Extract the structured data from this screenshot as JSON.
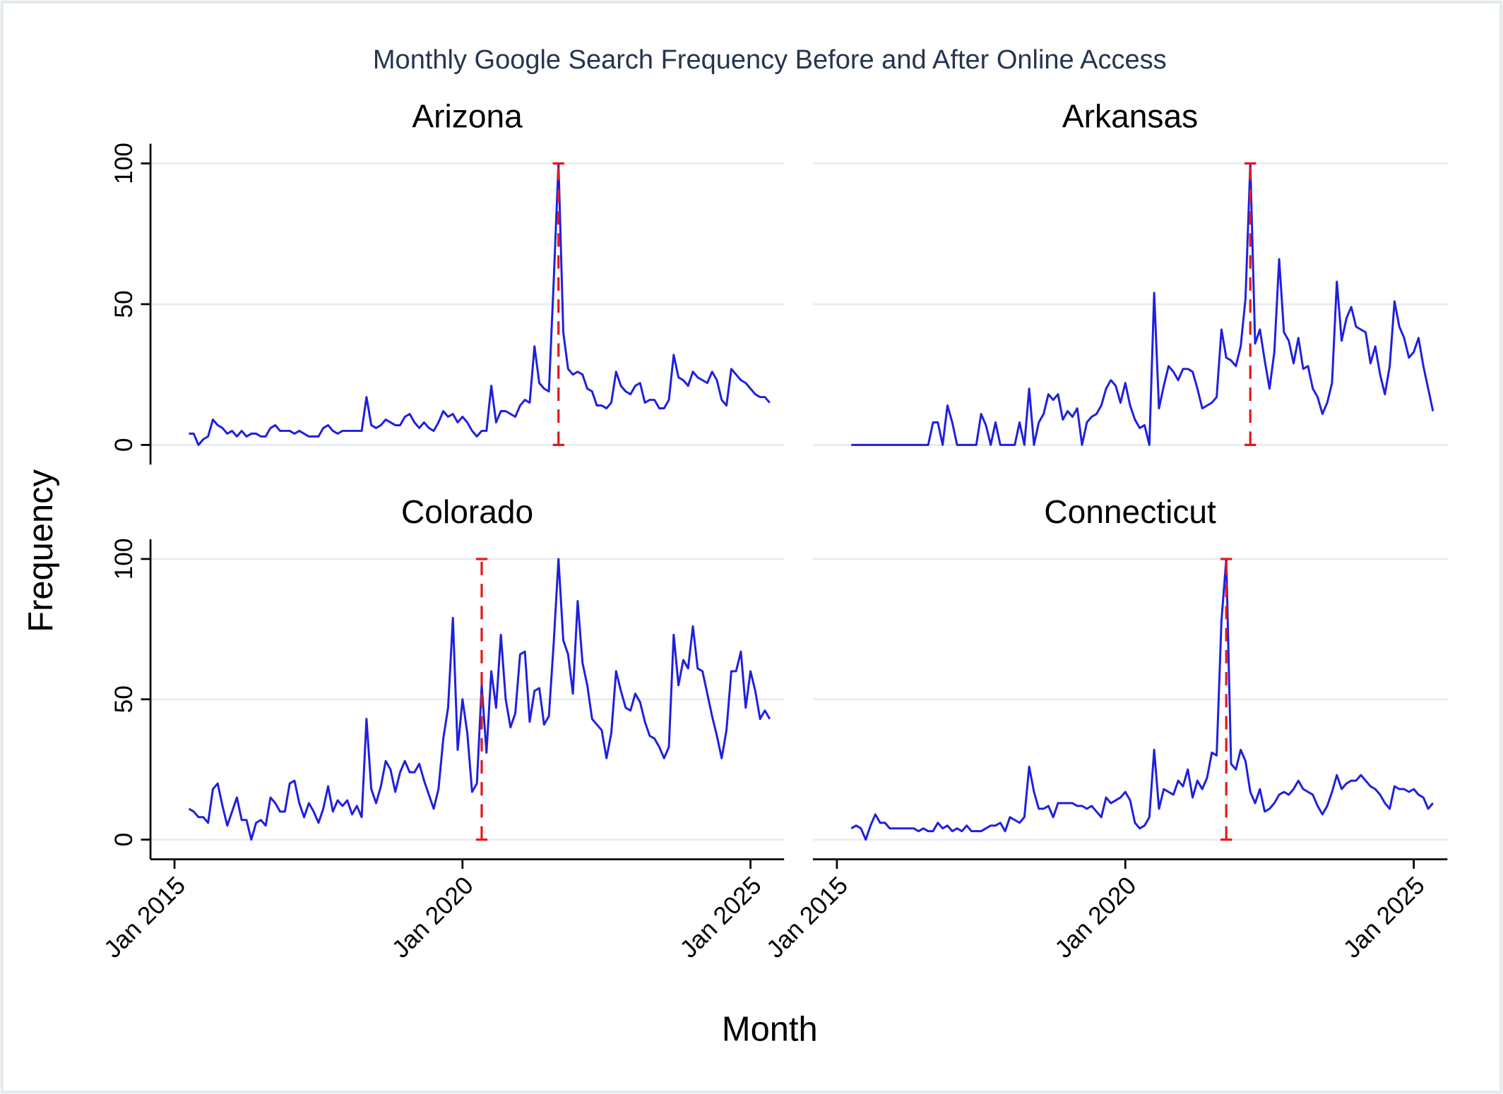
{
  "title": "Monthly Google Search Frequency Before and After Online Access",
  "x_label": "Month",
  "y_label": "Frequency",
  "chart_data": [
    {
      "type": "line",
      "title": "Arizona",
      "color": "#1f1fe0",
      "x": [
        "2015-04",
        "2015-05",
        "2015-06",
        "2015-07",
        "2015-08",
        "2015-09",
        "2015-10",
        "2015-11",
        "2015-12",
        "2016-01",
        "2016-02",
        "2016-03",
        "2016-04",
        "2016-05",
        "2016-06",
        "2016-07",
        "2016-08",
        "2016-09",
        "2016-10",
        "2016-11",
        "2016-12",
        "2017-01",
        "2017-02",
        "2017-03",
        "2017-04",
        "2017-05",
        "2017-06",
        "2017-07",
        "2017-08",
        "2017-09",
        "2017-10",
        "2017-11",
        "2017-12",
        "2018-01",
        "2018-02",
        "2018-03",
        "2018-04",
        "2018-05",
        "2018-06",
        "2018-07",
        "2018-08",
        "2018-09",
        "2018-10",
        "2018-11",
        "2018-12",
        "2019-01",
        "2019-02",
        "2019-03",
        "2019-04",
        "2019-05",
        "2019-06",
        "2019-07",
        "2019-08",
        "2019-09",
        "2019-10",
        "2019-11",
        "2019-12",
        "2020-01",
        "2020-02",
        "2020-03",
        "2020-04",
        "2020-05",
        "2020-06",
        "2020-07",
        "2020-08",
        "2020-09",
        "2020-10",
        "2020-11",
        "2020-12",
        "2021-01",
        "2021-02",
        "2021-03",
        "2021-04",
        "2021-05",
        "2021-06",
        "2021-07",
        "2021-08",
        "2021-09",
        "2021-10",
        "2021-11",
        "2021-12",
        "2022-01",
        "2022-02",
        "2022-03",
        "2022-04",
        "2022-05",
        "2022-06",
        "2022-07",
        "2022-08",
        "2022-09",
        "2022-10",
        "2022-11",
        "2022-12",
        "2023-01",
        "2023-02",
        "2023-03",
        "2023-04",
        "2023-05",
        "2023-06",
        "2023-07",
        "2023-08",
        "2023-09",
        "2023-10",
        "2023-11",
        "2023-12",
        "2024-01",
        "2024-02",
        "2024-03",
        "2024-04",
        "2024-05",
        "2024-06",
        "2024-07",
        "2024-08",
        "2024-09",
        "2024-10",
        "2024-11",
        "2024-12",
        "2025-01",
        "2025-02",
        "2025-03",
        "2025-04",
        "2025-05"
      ],
      "values": [
        4,
        4,
        0,
        2,
        3,
        9,
        7,
        6,
        4,
        5,
        3,
        5,
        3,
        4,
        4,
        3,
        3,
        6,
        7,
        5,
        5,
        5,
        4,
        5,
        4,
        3,
        3,
        3,
        6,
        7,
        5,
        4,
        5,
        5,
        5,
        5,
        5,
        17,
        7,
        6,
        7,
        9,
        8,
        7,
        7,
        10,
        11,
        8,
        6,
        8,
        6,
        5,
        8,
        12,
        10,
        11,
        8,
        10,
        8,
        5,
        3,
        5,
        5,
        21,
        8,
        12,
        12,
        11,
        10,
        14,
        16,
        15,
        35,
        22,
        20,
        19,
        58,
        100,
        40,
        27,
        25,
        26,
        25,
        20,
        19,
        14,
        14,
        13,
        15,
        26,
        21,
        19,
        18,
        21,
        22,
        15,
        16,
        16,
        13,
        13,
        16,
        32,
        24,
        23,
        21,
        26,
        24,
        23,
        22,
        26,
        23,
        16,
        14,
        27,
        25,
        23,
        22,
        20,
        18,
        17,
        17,
        15
      ],
      "vline": {
        "x": "2021-09",
        "y": [
          0,
          100
        ],
        "color": "#e41a1c"
      },
      "xlim": [
        "2014-08",
        "2025-08"
      ],
      "ylim": [
        -7,
        107
      ],
      "yticks": [
        0,
        50,
        100
      ],
      "grid": true,
      "y_axis": true,
      "x_axis": false
    },
    {
      "type": "line",
      "title": "Arkansas",
      "color": "#1f1fe0",
      "x": [
        "2015-04",
        "2015-05",
        "2015-06",
        "2015-07",
        "2015-08",
        "2015-09",
        "2015-10",
        "2015-11",
        "2015-12",
        "2016-01",
        "2016-02",
        "2016-03",
        "2016-04",
        "2016-05",
        "2016-06",
        "2016-07",
        "2016-08",
        "2016-09",
        "2016-10",
        "2016-11",
        "2016-12",
        "2017-01",
        "2017-02",
        "2017-03",
        "2017-04",
        "2017-05",
        "2017-06",
        "2017-07",
        "2017-08",
        "2017-09",
        "2017-10",
        "2017-11",
        "2017-12",
        "2018-01",
        "2018-02",
        "2018-03",
        "2018-04",
        "2018-05",
        "2018-06",
        "2018-07",
        "2018-08",
        "2018-09",
        "2018-10",
        "2018-11",
        "2018-12",
        "2019-01",
        "2019-02",
        "2019-03",
        "2019-04",
        "2019-05",
        "2019-06",
        "2019-07",
        "2019-08",
        "2019-09",
        "2019-10",
        "2019-11",
        "2019-12",
        "2020-01",
        "2020-02",
        "2020-03",
        "2020-04",
        "2020-05",
        "2020-06",
        "2020-07",
        "2020-08",
        "2020-09",
        "2020-10",
        "2020-11",
        "2020-12",
        "2021-01",
        "2021-02",
        "2021-03",
        "2021-04",
        "2021-05",
        "2021-06",
        "2021-07",
        "2021-08",
        "2021-09",
        "2021-10",
        "2021-11",
        "2021-12",
        "2022-01",
        "2022-02",
        "2022-03",
        "2022-04",
        "2022-05",
        "2022-06",
        "2022-07",
        "2022-08",
        "2022-09",
        "2022-10",
        "2022-11",
        "2022-12",
        "2023-01",
        "2023-02",
        "2023-03",
        "2023-04",
        "2023-05",
        "2023-06",
        "2023-07",
        "2023-08",
        "2023-09",
        "2023-10",
        "2023-11",
        "2023-12",
        "2024-01",
        "2024-02",
        "2024-03",
        "2024-04",
        "2024-05",
        "2024-06",
        "2024-07",
        "2024-08",
        "2024-09",
        "2024-10",
        "2024-11",
        "2024-12",
        "2025-01",
        "2025-02",
        "2025-03",
        "2025-04",
        "2025-05"
      ],
      "values": [
        0,
        0,
        0,
        0,
        0,
        0,
        0,
        0,
        0,
        0,
        0,
        0,
        0,
        0,
        0,
        0,
        0,
        8,
        8,
        0,
        14,
        8,
        0,
        0,
        0,
        0,
        0,
        11,
        7,
        0,
        8,
        0,
        0,
        0,
        0,
        8,
        0,
        20,
        0,
        8,
        11,
        18,
        16,
        18,
        9,
        12,
        10,
        13,
        0,
        8,
        10,
        11,
        14,
        20,
        23,
        21,
        15,
        22,
        14,
        9,
        6,
        7,
        0,
        54,
        13,
        21,
        28,
        26,
        23,
        27,
        27,
        26,
        20,
        13,
        14,
        15,
        17,
        41,
        31,
        30,
        28,
        35,
        52,
        100,
        36,
        41,
        30,
        20,
        33,
        66,
        40,
        37,
        29,
        38,
        27,
        28,
        20,
        17,
        11,
        15,
        22,
        58,
        37,
        45,
        49,
        42,
        41,
        40,
        29,
        35,
        25,
        18,
        28,
        51,
        42,
        38,
        31,
        33,
        38,
        28,
        20,
        12
      ],
      "vline": {
        "x": "2022-03",
        "y": [
          0,
          100
        ],
        "color": "#e41a1c"
      },
      "xlim": [
        "2014-08",
        "2025-08"
      ],
      "ylim": [
        -7,
        107
      ],
      "yticks": [
        0,
        50,
        100
      ],
      "grid": true,
      "y_axis": false,
      "x_axis": false
    },
    {
      "type": "line",
      "title": "Colorado",
      "color": "#1f1fe0",
      "x": [
        "2015-04",
        "2015-05",
        "2015-06",
        "2015-07",
        "2015-08",
        "2015-09",
        "2015-10",
        "2015-11",
        "2015-12",
        "2016-01",
        "2016-02",
        "2016-03",
        "2016-04",
        "2016-05",
        "2016-06",
        "2016-07",
        "2016-08",
        "2016-09",
        "2016-10",
        "2016-11",
        "2016-12",
        "2017-01",
        "2017-02",
        "2017-03",
        "2017-04",
        "2017-05",
        "2017-06",
        "2017-07",
        "2017-08",
        "2017-09",
        "2017-10",
        "2017-11",
        "2017-12",
        "2018-01",
        "2018-02",
        "2018-03",
        "2018-04",
        "2018-05",
        "2018-06",
        "2018-07",
        "2018-08",
        "2018-09",
        "2018-10",
        "2018-11",
        "2018-12",
        "2019-01",
        "2019-02",
        "2019-03",
        "2019-04",
        "2019-05",
        "2019-06",
        "2019-07",
        "2019-08",
        "2019-09",
        "2019-10",
        "2019-11",
        "2019-12",
        "2020-01",
        "2020-02",
        "2020-03",
        "2020-04",
        "2020-05",
        "2020-06",
        "2020-07",
        "2020-08",
        "2020-09",
        "2020-10",
        "2020-11",
        "2020-12",
        "2021-01",
        "2021-02",
        "2021-03",
        "2021-04",
        "2021-05",
        "2021-06",
        "2021-07",
        "2021-08",
        "2021-09",
        "2021-10",
        "2021-11",
        "2021-12",
        "2022-01",
        "2022-02",
        "2022-03",
        "2022-04",
        "2022-05",
        "2022-06",
        "2022-07",
        "2022-08",
        "2022-09",
        "2022-10",
        "2022-11",
        "2022-12",
        "2023-01",
        "2023-02",
        "2023-03",
        "2023-04",
        "2023-05",
        "2023-06",
        "2023-07",
        "2023-08",
        "2023-09",
        "2023-10",
        "2023-11",
        "2023-12",
        "2024-01",
        "2024-02",
        "2024-03",
        "2024-04",
        "2024-05",
        "2024-06",
        "2024-07",
        "2024-08",
        "2024-09",
        "2024-10",
        "2024-11",
        "2024-12",
        "2025-01",
        "2025-02",
        "2025-03",
        "2025-04",
        "2025-05"
      ],
      "values": [
        11,
        10,
        8,
        8,
        6,
        18,
        20,
        12,
        5,
        10,
        15,
        7,
        7,
        0,
        6,
        7,
        5,
        15,
        13,
        10,
        10,
        20,
        21,
        13,
        8,
        13,
        10,
        6,
        11,
        19,
        10,
        14,
        12,
        14,
        9,
        12,
        8,
        43,
        18,
        13,
        19,
        28,
        25,
        17,
        24,
        28,
        24,
        24,
        27,
        21,
        16,
        11,
        18,
        36,
        47,
        79,
        32,
        50,
        38,
        17,
        20,
        55,
        31,
        60,
        47,
        73,
        50,
        40,
        45,
        66,
        67,
        42,
        53,
        54,
        41,
        44,
        70,
        100,
        71,
        66,
        52,
        85,
        63,
        55,
        43,
        41,
        39,
        29,
        38,
        60,
        53,
        47,
        46,
        52,
        49,
        42,
        37,
        36,
        33,
        29,
        33,
        73,
        55,
        64,
        61,
        76,
        61,
        60,
        52,
        44,
        37,
        29,
        39,
        60,
        60,
        67,
        47,
        60,
        53,
        43,
        46,
        43
      ],
      "vline": {
        "x": "2020-05",
        "y": [
          0,
          100
        ],
        "color": "#e41a1c"
      },
      "xlim": [
        "2014-08",
        "2025-08"
      ],
      "ylim": [
        -7,
        107
      ],
      "yticks": [
        0,
        50,
        100
      ],
      "xticks": [
        {
          "value": "2015-01",
          "label": "Jan 2015"
        },
        {
          "value": "2020-01",
          "label": "Jan 2020"
        },
        {
          "value": "2025-01",
          "label": "Jan 2025"
        }
      ],
      "grid": true,
      "y_axis": true,
      "x_axis": true
    },
    {
      "type": "line",
      "title": "Connecticut",
      "color": "#1f1fe0",
      "x": [
        "2015-04",
        "2015-05",
        "2015-06",
        "2015-07",
        "2015-08",
        "2015-09",
        "2015-10",
        "2015-11",
        "2015-12",
        "2016-01",
        "2016-02",
        "2016-03",
        "2016-04",
        "2016-05",
        "2016-06",
        "2016-07",
        "2016-08",
        "2016-09",
        "2016-10",
        "2016-11",
        "2016-12",
        "2017-01",
        "2017-02",
        "2017-03",
        "2017-04",
        "2017-05",
        "2017-06",
        "2017-07",
        "2017-08",
        "2017-09",
        "2017-10",
        "2017-11",
        "2017-12",
        "2018-01",
        "2018-02",
        "2018-03",
        "2018-04",
        "2018-05",
        "2018-06",
        "2018-07",
        "2018-08",
        "2018-09",
        "2018-10",
        "2018-11",
        "2018-12",
        "2019-01",
        "2019-02",
        "2019-03",
        "2019-04",
        "2019-05",
        "2019-06",
        "2019-07",
        "2019-08",
        "2019-09",
        "2019-10",
        "2019-11",
        "2019-12",
        "2020-01",
        "2020-02",
        "2020-03",
        "2020-04",
        "2020-05",
        "2020-06",
        "2020-07",
        "2020-08",
        "2020-09",
        "2020-10",
        "2020-11",
        "2020-12",
        "2021-01",
        "2021-02",
        "2021-03",
        "2021-04",
        "2021-05",
        "2021-06",
        "2021-07",
        "2021-08",
        "2021-09",
        "2021-10",
        "2021-11",
        "2021-12",
        "2022-01",
        "2022-02",
        "2022-03",
        "2022-04",
        "2022-05",
        "2022-06",
        "2022-07",
        "2022-08",
        "2022-09",
        "2022-10",
        "2022-11",
        "2022-12",
        "2023-01",
        "2023-02",
        "2023-03",
        "2023-04",
        "2023-05",
        "2023-06",
        "2023-07",
        "2023-08",
        "2023-09",
        "2023-10",
        "2023-11",
        "2023-12",
        "2024-01",
        "2024-02",
        "2024-03",
        "2024-04",
        "2024-05",
        "2024-06",
        "2024-07",
        "2024-08",
        "2024-09",
        "2024-10",
        "2024-11",
        "2024-12",
        "2025-01",
        "2025-02",
        "2025-03",
        "2025-04",
        "2025-05"
      ],
      "values": [
        4,
        5,
        4,
        0,
        5,
        9,
        6,
        6,
        4,
        4,
        4,
        4,
        4,
        4,
        3,
        4,
        3,
        3,
        6,
        4,
        5,
        3,
        4,
        3,
        5,
        3,
        3,
        3,
        4,
        5,
        5,
        6,
        3,
        8,
        7,
        6,
        8,
        26,
        17,
        11,
        11,
        12,
        8,
        13,
        13,
        13,
        13,
        12,
        12,
        11,
        12,
        10,
        8,
        15,
        13,
        14,
        15,
        17,
        14,
        6,
        4,
        5,
        8,
        32,
        11,
        18,
        17,
        16,
        21,
        19,
        25,
        15,
        21,
        18,
        22,
        31,
        30,
        78,
        100,
        27,
        25,
        32,
        28,
        17,
        13,
        18,
        10,
        11,
        13,
        16,
        17,
        16,
        18,
        21,
        18,
        17,
        16,
        12,
        9,
        12,
        17,
        23,
        18,
        20,
        21,
        21,
        23,
        21,
        19,
        18,
        16,
        13,
        11,
        19,
        18,
        18,
        17,
        18,
        16,
        15,
        11,
        13
      ],
      "vline": {
        "x": "2021-10",
        "y": [
          0,
          100
        ],
        "color": "#e41a1c"
      },
      "xlim": [
        "2014-08",
        "2025-08"
      ],
      "ylim": [
        -7,
        107
      ],
      "yticks": [
        0,
        50,
        100
      ],
      "xticks": [
        {
          "value": "2015-01",
          "label": "Jan 2015"
        },
        {
          "value": "2020-01",
          "label": "Jan 2020"
        },
        {
          "value": "2025-01",
          "label": "Jan 2025"
        }
      ],
      "grid": true,
      "y_axis": false,
      "x_axis": true
    }
  ]
}
